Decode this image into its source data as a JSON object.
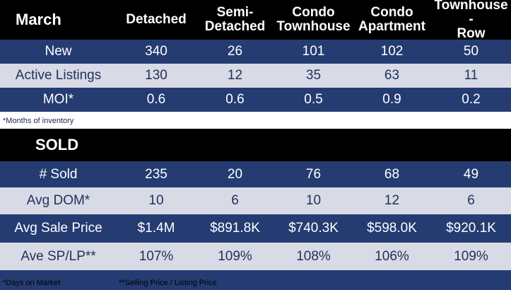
{
  "header": {
    "title": "March",
    "columns": [
      [
        "Detached"
      ],
      [
        "Semi-",
        "Detached"
      ],
      [
        "Condo",
        "Townhouse"
      ],
      [
        "Condo",
        "Apartment"
      ],
      [
        "Townhouse -",
        "Row"
      ]
    ]
  },
  "inventory_rows": [
    {
      "label": "New",
      "values": [
        "340",
        "26",
        "101",
        "102",
        "50"
      ]
    },
    {
      "label": "Active Listings",
      "values": [
        "130",
        "12",
        "35",
        "63",
        "11"
      ]
    },
    {
      "label": "MOI*",
      "values": [
        "0.6",
        "0.6",
        "0.5",
        "0.9",
        "0.2"
      ]
    }
  ],
  "inventory_note": "*Months of inventory",
  "sold_title": "SOLD",
  "sold_rows": [
    {
      "label": "# Sold",
      "values": [
        "235",
        "20",
        "76",
        "68",
        "49"
      ]
    },
    {
      "label": "Avg DOM*",
      "values": [
        "10",
        "6",
        "10",
        "12",
        "6"
      ]
    },
    {
      "label": "Avg Sale Price",
      "values": [
        "$1.4M",
        "$891.8K",
        "$740.3K",
        "$598.0K",
        "$920.1K"
      ]
    },
    {
      "label": "Ave SP/LP**",
      "values": [
        "107%",
        "109%",
        "108%",
        "106%",
        "109%"
      ]
    }
  ],
  "footnotes": {
    "dom": "*Days on Market",
    "splp": "**Selling Price / Listing Price"
  },
  "colors": {
    "header_bg": "#000000",
    "dark_row": "#243c71",
    "light_row": "#d8dbe6"
  }
}
